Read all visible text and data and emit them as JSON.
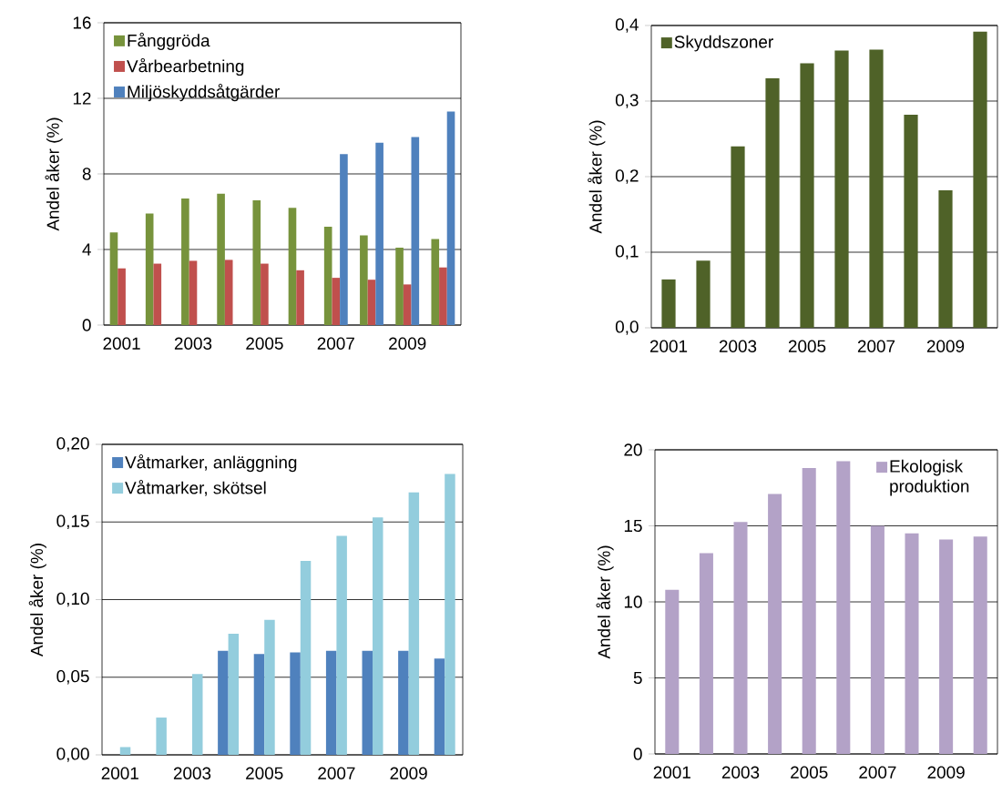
{
  "chart_data": [
    {
      "type": "bar",
      "ylabel": "Andel åker (%)",
      "categories": [
        "2001",
        null,
        "2003",
        null,
        "2005",
        null,
        "2007",
        null,
        "2009",
        null
      ],
      "series": [
        {
          "name": "Fånggröda",
          "color": "#77933c",
          "values": [
            4.9,
            5.9,
            6.7,
            6.95,
            6.6,
            6.2,
            5.2,
            4.75,
            4.1,
            4.55
          ]
        },
        {
          "name": "Vårbearbetning",
          "color": "#c0504d",
          "values": [
            3.0,
            3.25,
            3.4,
            3.45,
            3.25,
            2.9,
            2.5,
            2.4,
            2.15,
            3.05
          ]
        },
        {
          "name": "Miljöskyddsåtgärder",
          "color": "#4f81bd",
          "values": [
            null,
            null,
            null,
            null,
            null,
            null,
            9.05,
            9.65,
            9.95,
            11.3
          ]
        }
      ],
      "ylim": [
        0,
        16
      ],
      "yticks": [
        0,
        4,
        8,
        12,
        16
      ],
      "grid": "y",
      "legend": "top left"
    },
    {
      "type": "bar",
      "ylabel": "Andel åker (%)",
      "categories": [
        "2001",
        null,
        "2003",
        null,
        "2005",
        null,
        "2007",
        null,
        "2009",
        null
      ],
      "series": [
        {
          "name": "Skyddszoner",
          "color": "#4f6228",
          "values": [
            0.064,
            0.089,
            0.24,
            0.33,
            0.35,
            0.367,
            0.368,
            0.282,
            0.182,
            0.392
          ]
        }
      ],
      "ylim": [
        0,
        0.4
      ],
      "yticks": [
        {
          "value": 0,
          "label": "0,0"
        },
        {
          "value": 0.1,
          "label": "0,1"
        },
        {
          "value": 0.2,
          "label": "0,2"
        },
        {
          "value": 0.3,
          "label": "0,3"
        },
        {
          "value": 0.4,
          "label": "0,4"
        }
      ],
      "grid": "y",
      "legend": "top left"
    },
    {
      "type": "bar",
      "ylabel": "Andel åker (%)",
      "categories": [
        "2001",
        null,
        "2003",
        null,
        "2005",
        null,
        "2007",
        null,
        "2009",
        null
      ],
      "series": [
        {
          "name": "Våtmarker, anläggning",
          "color": "#4f81bd",
          "values": [
            null,
            null,
            null,
            0.067,
            0.065,
            0.066,
            0.067,
            0.067,
            0.067,
            0.062
          ]
        },
        {
          "name": "Våtmarker, skötsel",
          "color": "#93cddd",
          "values": [
            0.005,
            0.024,
            0.052,
            0.078,
            0.087,
            0.125,
            0.141,
            0.153,
            0.169,
            0.181
          ]
        }
      ],
      "ylim": [
        0,
        0.2
      ],
      "yticks": [
        {
          "value": 0,
          "label": "0,00"
        },
        {
          "value": 0.05,
          "label": "0,05"
        },
        {
          "value": 0.1,
          "label": "0,10"
        },
        {
          "value": 0.15,
          "label": "0,15"
        },
        {
          "value": 0.2,
          "label": "0,20"
        }
      ],
      "grid": "y",
      "legend": "top left"
    },
    {
      "type": "bar",
      "ylabel": "Andel åker (%)",
      "categories": [
        "2001",
        null,
        "2003",
        null,
        "2005",
        null,
        "2007",
        null,
        "2009",
        null
      ],
      "series": [
        {
          "name": "Ekologisk produktion",
          "color": "#b3a2c7",
          "values": [
            10.8,
            13.2,
            15.25,
            17.1,
            18.8,
            19.25,
            15.0,
            14.5,
            14.1,
            14.3
          ]
        }
      ],
      "ylim": [
        0,
        20
      ],
      "yticks": [
        0,
        5,
        10,
        15,
        20
      ],
      "grid": "y",
      "legend": "top right"
    }
  ]
}
